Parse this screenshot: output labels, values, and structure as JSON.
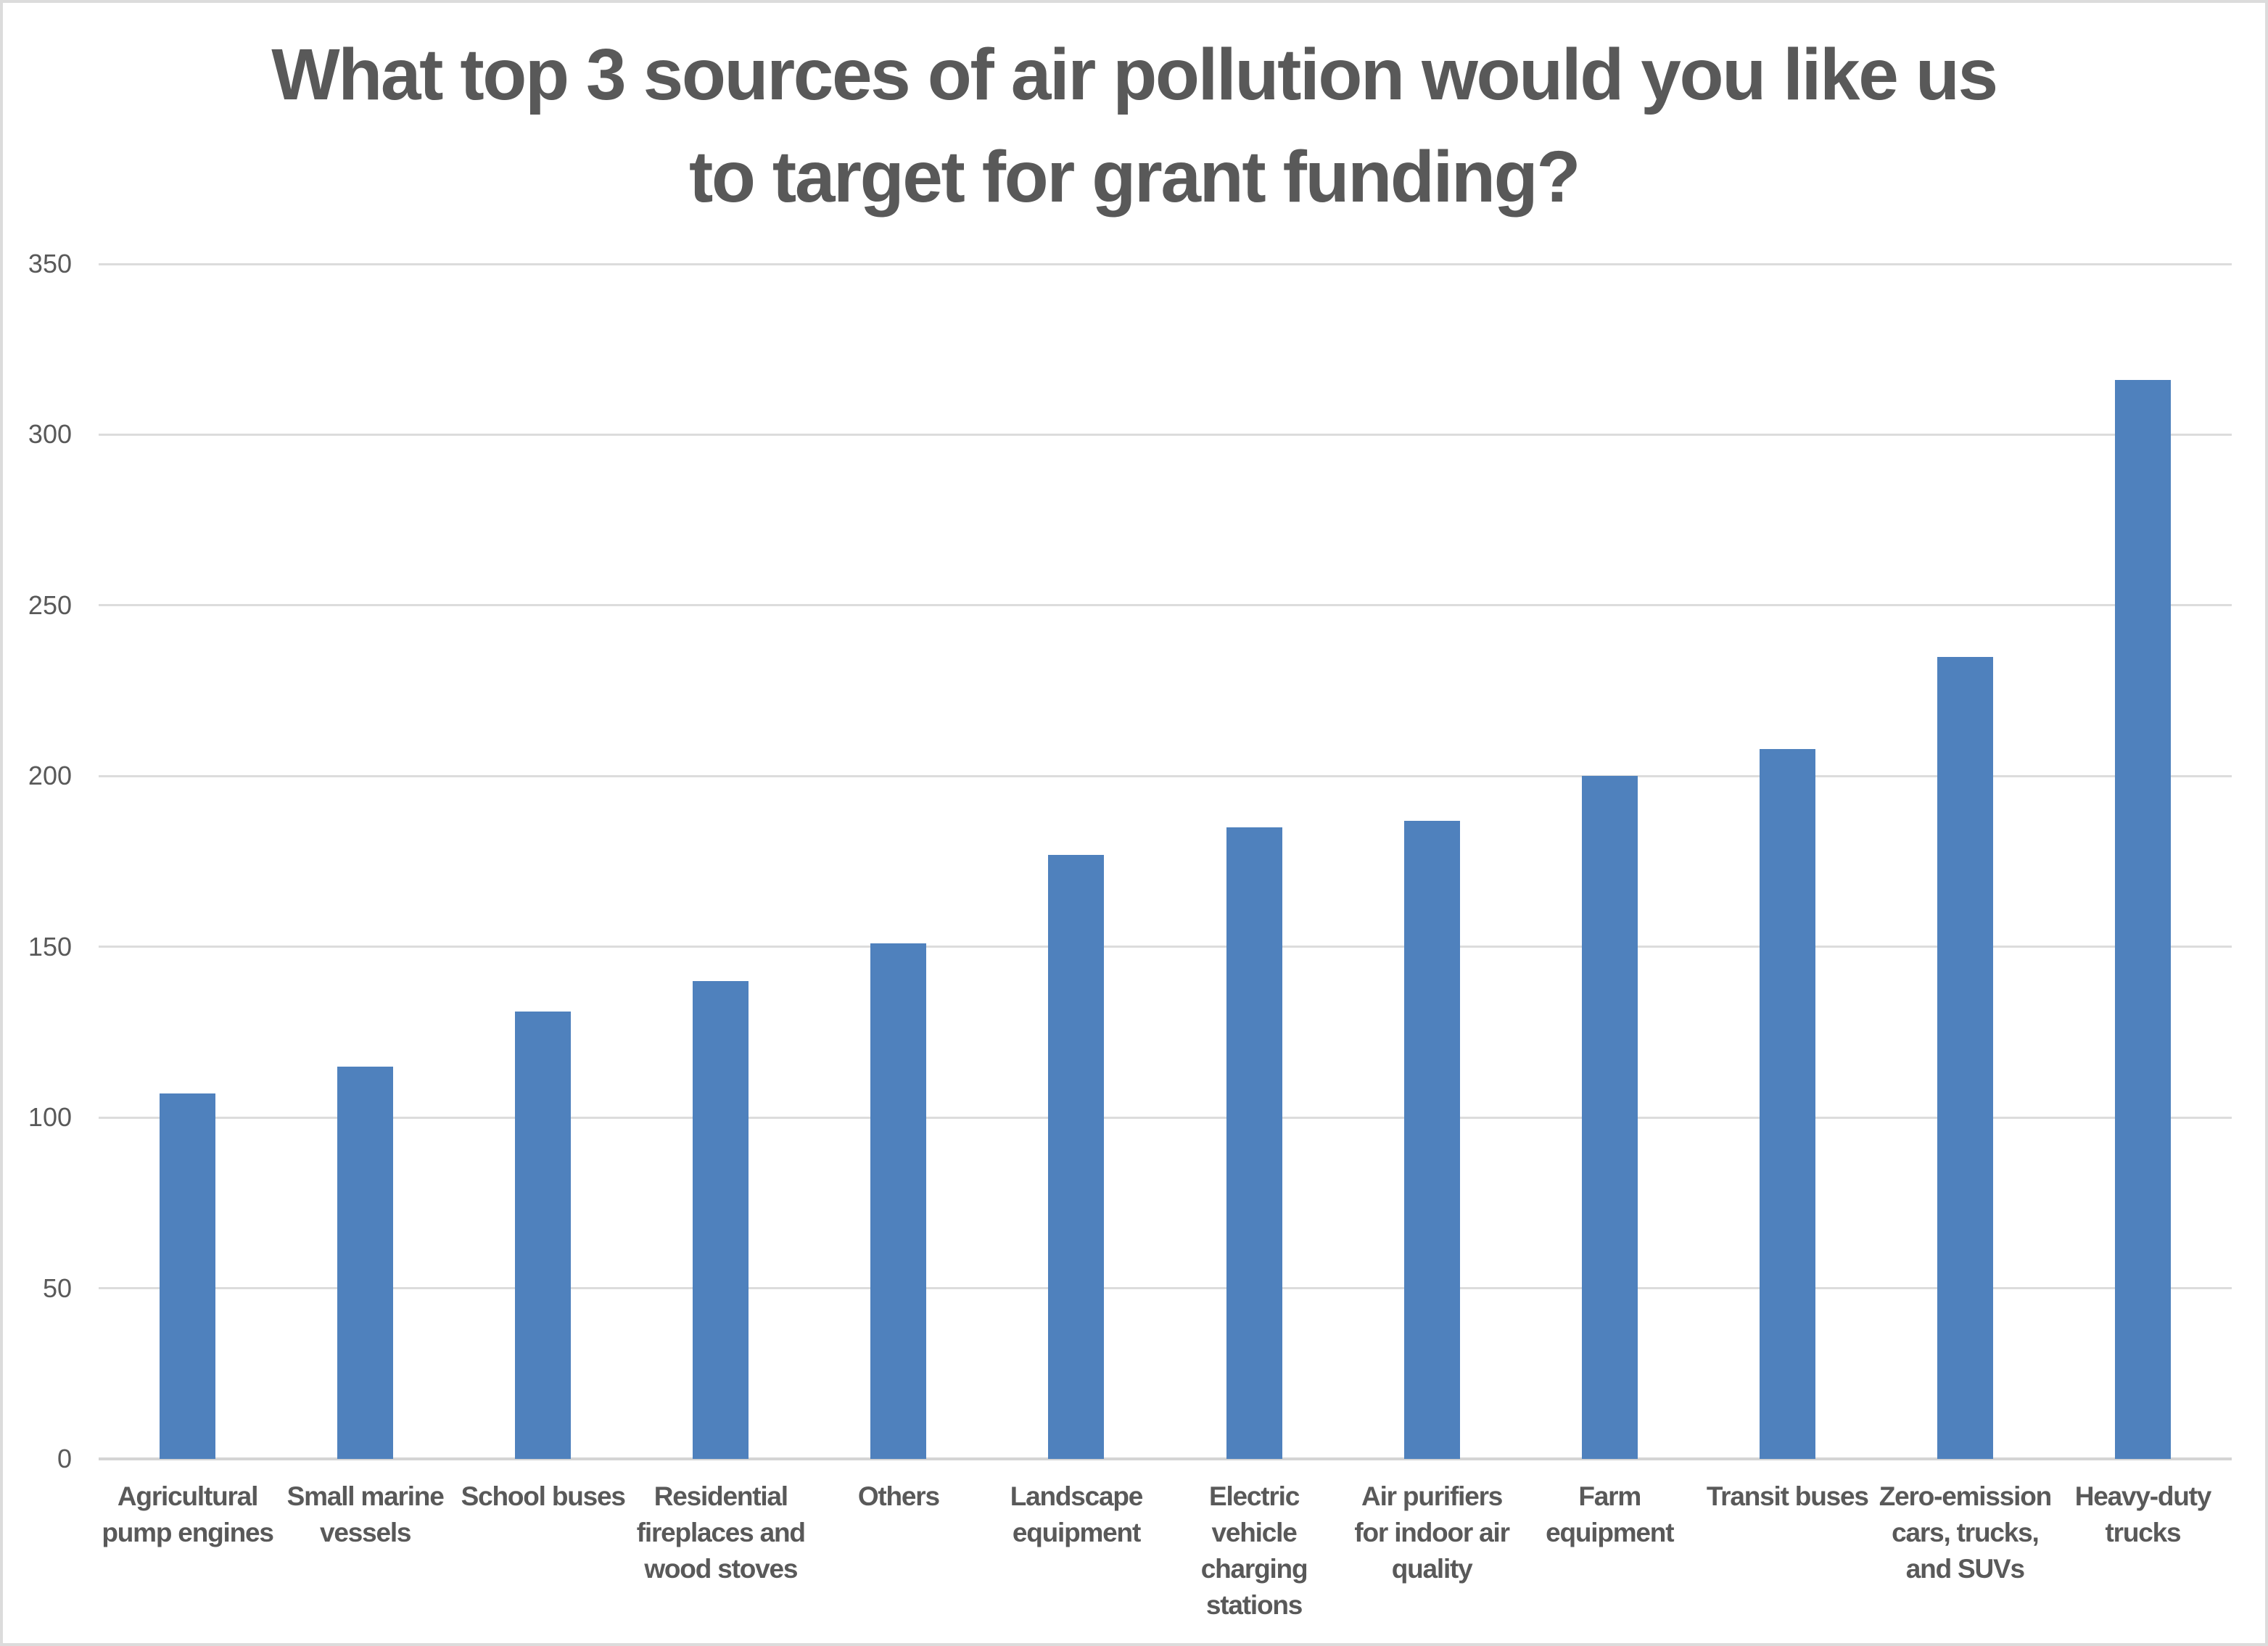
{
  "chart_data": {
    "type": "bar",
    "title": "What top 3 sources of air pollution would you like us to target for grant funding?",
    "title_lines": [
      "What top 3 sources of air pollution would you like us",
      "to target for grant funding?"
    ],
    "categories": [
      "Agricultural pump engines",
      "Small marine vessels",
      "School buses",
      "Residential fireplaces and wood stoves",
      "Others",
      "Landscape equipment",
      "Electric vehicle charging stations",
      "Air purifiers for indoor air quality",
      "Farm equipment",
      "Transit buses",
      "Zero-emission cars, trucks, and SUVs",
      "Heavy-duty trucks"
    ],
    "category_label_lines": [
      [
        "Agricultural",
        "pump engines"
      ],
      [
        "Small marine",
        "vessels"
      ],
      [
        "School buses"
      ],
      [
        "Residential",
        "fireplaces and",
        "wood stoves"
      ],
      [
        "Others"
      ],
      [
        "Landscape",
        "equipment"
      ],
      [
        "Electric",
        "vehicle",
        "charging",
        "stations"
      ],
      [
        "Air purifiers",
        "for indoor air",
        "quality"
      ],
      [
        "Farm",
        "equipment"
      ],
      [
        "Transit buses"
      ],
      [
        "Zero-emission",
        "cars, trucks,",
        "and SUVs"
      ],
      [
        "Heavy-duty",
        "trucks"
      ]
    ],
    "values": [
      107,
      115,
      131,
      140,
      151,
      177,
      185,
      187,
      200,
      208,
      235,
      316
    ],
    "yticks": [
      0,
      50,
      100,
      150,
      200,
      250,
      300,
      350
    ],
    "ylim": [
      0,
      350
    ],
    "xlabel": "",
    "ylabel": "",
    "grid": "horizontal",
    "legend": "none",
    "bar_color": "#4F81BD",
    "grid_color": "#DCDCDC",
    "axis_color": "#D4D4D4",
    "text_color": "#595959",
    "background_color": "#FFFFFF"
  }
}
